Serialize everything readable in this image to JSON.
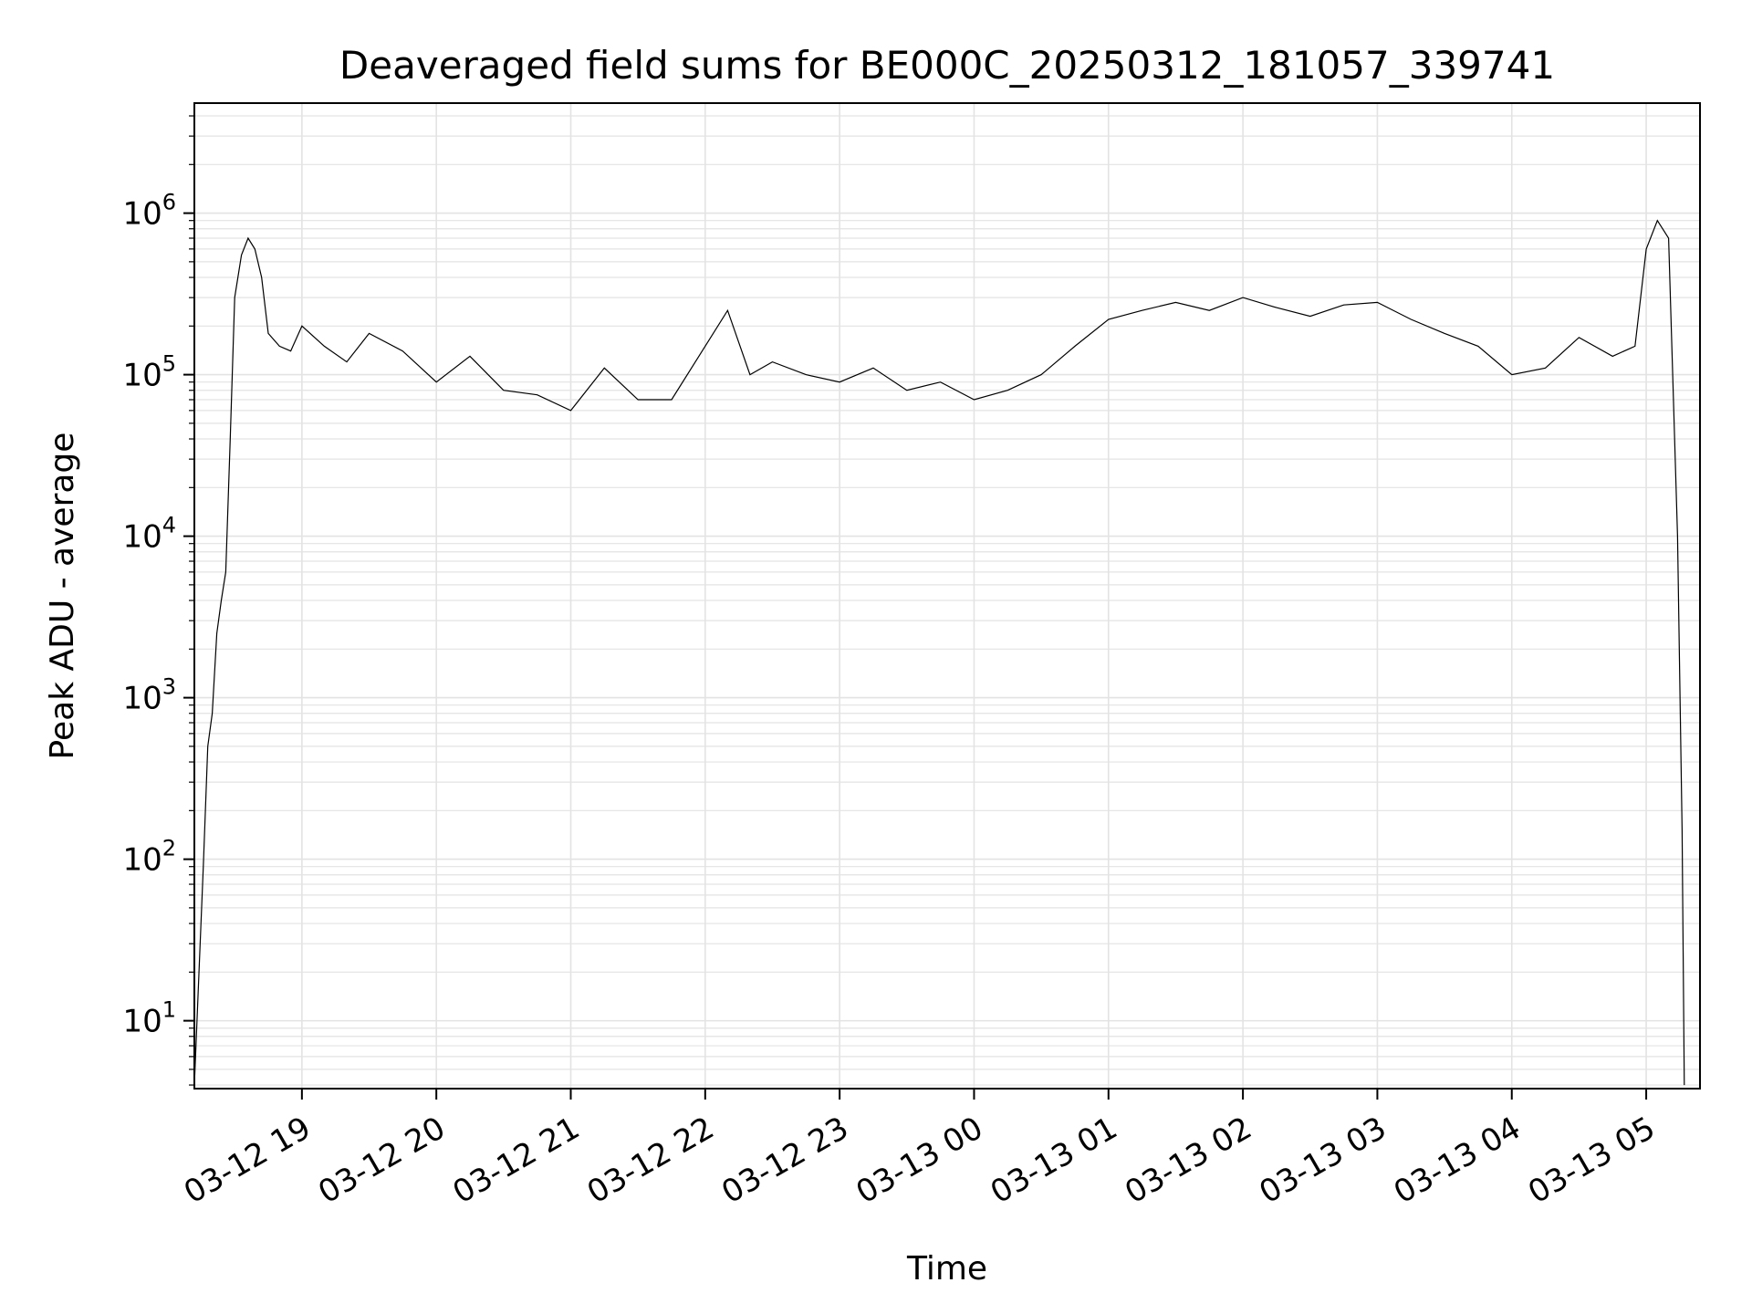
{
  "chart_data": {
    "type": "line",
    "title": "Deaveraged field sums for BE000C_20250312_181057_339741",
    "xlabel": "Time",
    "ylabel": "Peak ADU - average",
    "yscale": "log",
    "xlim": [
      "2025-03-12T18:12",
      "2025-03-13T05:24"
    ],
    "ylim": [
      3.8,
      4800000
    ],
    "grid": true,
    "line_color": "#000000",
    "grid_color": "#e3e3e3",
    "x_ticks": [
      {
        "t": "2025-03-12T19:00",
        "label": "03-12 19"
      },
      {
        "t": "2025-03-12T20:00",
        "label": "03-12 20"
      },
      {
        "t": "2025-03-12T21:00",
        "label": "03-12 21"
      },
      {
        "t": "2025-03-12T22:00",
        "label": "03-12 22"
      },
      {
        "t": "2025-03-12T23:00",
        "label": "03-12 23"
      },
      {
        "t": "2025-03-13T00:00",
        "label": "03-13 00"
      },
      {
        "t": "2025-03-13T01:00",
        "label": "03-13 01"
      },
      {
        "t": "2025-03-13T02:00",
        "label": "03-13 02"
      },
      {
        "t": "2025-03-13T03:00",
        "label": "03-13 03"
      },
      {
        "t": "2025-03-13T04:00",
        "label": "03-13 04"
      },
      {
        "t": "2025-03-13T05:00",
        "label": "03-13 05"
      }
    ],
    "y_ticks": [
      {
        "value": 10,
        "base": "10",
        "exp": "1"
      },
      {
        "value": 100,
        "base": "10",
        "exp": "2"
      },
      {
        "value": 1000,
        "base": "10",
        "exp": "3"
      },
      {
        "value": 10000,
        "base": "10",
        "exp": "4"
      },
      {
        "value": 100000,
        "base": "10",
        "exp": "5"
      },
      {
        "value": 1000000,
        "base": "10",
        "exp": "6"
      }
    ],
    "series": [
      {
        "x": [
          "2025-03-12T18:12",
          "2025-03-12T18:16",
          "2025-03-12T18:18",
          "2025-03-12T18:20",
          "2025-03-12T18:22",
          "2025-03-12T18:24",
          "2025-03-12T18:26",
          "2025-03-12T18:28",
          "2025-03-12T18:30",
          "2025-03-12T18:33",
          "2025-03-12T18:36",
          "2025-03-12T18:39",
          "2025-03-12T18:42",
          "2025-03-12T18:45",
          "2025-03-12T18:50",
          "2025-03-12T18:55",
          "2025-03-12T19:00",
          "2025-03-12T19:10",
          "2025-03-12T19:20",
          "2025-03-12T19:30",
          "2025-03-12T19:45",
          "2025-03-12T20:00",
          "2025-03-12T20:15",
          "2025-03-12T20:30",
          "2025-03-12T20:45",
          "2025-03-12T21:00",
          "2025-03-12T21:15",
          "2025-03-12T21:30",
          "2025-03-12T21:45",
          "2025-03-12T22:00",
          "2025-03-12T22:10",
          "2025-03-12T22:20",
          "2025-03-12T22:30",
          "2025-03-12T22:45",
          "2025-03-12T23:00",
          "2025-03-12T23:15",
          "2025-03-12T23:30",
          "2025-03-12T23:45",
          "2025-03-13T00:00",
          "2025-03-13T00:15",
          "2025-03-13T00:30",
          "2025-03-13T00:45",
          "2025-03-13T01:00",
          "2025-03-13T01:15",
          "2025-03-13T01:30",
          "2025-03-13T01:45",
          "2025-03-13T02:00",
          "2025-03-13T02:15",
          "2025-03-13T02:30",
          "2025-03-13T02:45",
          "2025-03-13T03:00",
          "2025-03-13T03:15",
          "2025-03-13T03:30",
          "2025-03-13T03:45",
          "2025-03-13T04:00",
          "2025-03-13T04:15",
          "2025-03-13T04:30",
          "2025-03-13T04:45",
          "2025-03-13T04:55",
          "2025-03-13T05:00",
          "2025-03-13T05:05",
          "2025-03-13T05:10",
          "2025-03-13T05:14",
          "2025-03-13T05:16",
          "2025-03-13T05:17"
        ],
        "y": [
          4,
          90,
          500,
          800,
          2500,
          4000,
          6000,
          40000,
          300000,
          550000,
          700000,
          600000,
          400000,
          180000,
          150000,
          140000,
          200000,
          150000,
          120000,
          180000,
          140000,
          90000,
          130000,
          80000,
          75000,
          60000,
          110000,
          70000,
          70000,
          150000,
          250000,
          100000,
          120000,
          100000,
          90000,
          110000,
          80000,
          90000,
          70000,
          80000,
          100000,
          150000,
          220000,
          250000,
          280000,
          250000,
          300000,
          260000,
          230000,
          270000,
          280000,
          220000,
          180000,
          150000,
          100000,
          110000,
          170000,
          130000,
          150000,
          600000,
          900000,
          700000,
          10000,
          150,
          4
        ]
      }
    ]
  }
}
